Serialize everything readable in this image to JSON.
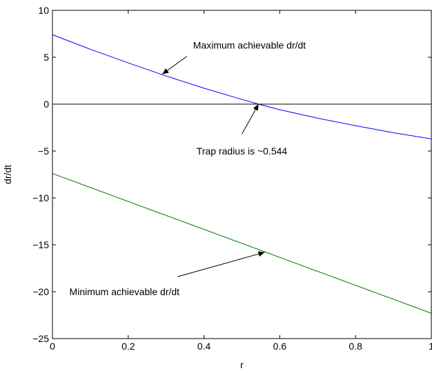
{
  "chart_data": {
    "type": "line",
    "xlabel": "r",
    "ylabel": "dr/dt",
    "xlim": [
      0,
      1
    ],
    "ylim": [
      -25,
      10
    ],
    "xticks": [
      0,
      0.2,
      0.4,
      0.6,
      0.8,
      1
    ],
    "xtick_labels": [
      "0",
      "0.2",
      "0.4",
      "0.6",
      "0.8",
      "1"
    ],
    "yticks": [
      -25,
      -20,
      -15,
      -10,
      -5,
      0,
      5,
      10
    ],
    "ytick_labels": [
      "−25",
      "−20",
      "−15",
      "−10",
      "−5",
      "0",
      "5",
      "10"
    ],
    "grid": false,
    "series": [
      {
        "color": "#0000ff",
        "x": [
          0,
          0.1,
          0.2,
          0.3,
          0.4,
          0.5,
          0.544,
          0.6,
          0.7,
          0.8,
          0.9,
          1.0
        ],
        "y": [
          7.4,
          5.85,
          4.4,
          3.0,
          1.7,
          0.5,
          0.0,
          -0.6,
          -1.5,
          -2.3,
          -3.05,
          -3.7
        ]
      },
      {
        "color": "#008000",
        "x": [
          0,
          1
        ],
        "y": [
          -7.4,
          -22.3
        ]
      },
      {
        "color": "#000000",
        "x": [
          0,
          1
        ],
        "y": [
          0,
          0
        ]
      }
    ],
    "annotations": [
      {
        "text": "Maximum achievable dr/dt",
        "text_x": 0.52,
        "text_y": 6.3,
        "arrow_from": [
          0.355,
          5.1
        ],
        "arrow_to": [
          0.29,
          3.2
        ]
      },
      {
        "text": "Trap radius is ~0.544",
        "text_x": 0.5,
        "text_y": -5.0,
        "arrow_from": [
          0.5,
          -3.2
        ],
        "arrow_to": [
          0.544,
          0.0
        ]
      },
      {
        "text": "Minimum achievable dr/dt",
        "text_x": 0.19,
        "text_y": -20.0,
        "arrow_from": [
          0.33,
          -18.4
        ],
        "arrow_to": [
          0.56,
          -15.8
        ]
      }
    ]
  }
}
